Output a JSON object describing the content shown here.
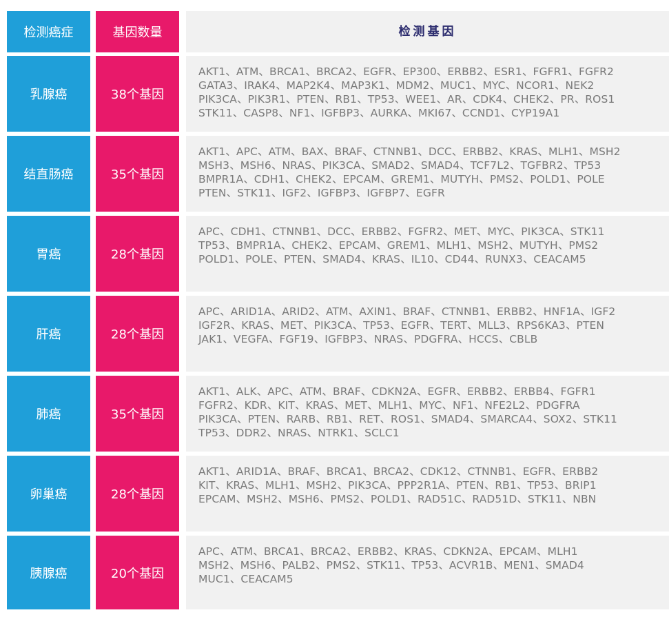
{
  "header": {
    "cancer_col": "检测癌症",
    "count_col": "基因数量",
    "genes_col": "检测基因"
  },
  "rows": [
    {
      "cancer": "乳腺癌",
      "count": "38个基因",
      "gene_lines": [
        "AKT1、ATM、BRCA1、BRCA2、EGFR、EP300、ERBB2、ESR1、FGFR1、FGFR2",
        "GATA3、IRAK4、MAP2K4、MAP3K1、MDM2、MUC1、MYC、NCOR1、NEK2",
        "PIK3CA、PIK3R1、PTEN、RB1、TP53、WEE1、AR、CDK4、CHEK2、PR、ROS1",
        "STK11、CASP8、NF1、IGFBP3、AURKA、MKI67、CCND1、CYP19A1"
      ]
    },
    {
      "cancer": "结直肠癌",
      "count": "35个基因",
      "gene_lines": [
        "AKT1、APC、ATM、BAX、BRAF、CTNNB1、DCC、ERBB2、KRAS、MLH1、MSH2",
        "MSH3、MSH6、NRAS、PIK3CA、SMAD2、SMAD4、TCF7L2、TGFBR2、TP53",
        "BMPR1A、CDH1、CHEK2、EPCAM、GREM1、MUTYH、PMS2、POLD1、POLE",
        "PTEN、STK11、IGF2、IGFBP3、IGFBP7、EGFR"
      ]
    },
    {
      "cancer": "胃癌",
      "count": "28个基因",
      "gene_lines": [
        "APC、CDH1、CTNNB1、DCC、ERBB2、FGFR2、MET、MYC、PIK3CA、STK11",
        "TP53、BMPR1A、CHEK2、EPCAM、GREM1、MLH1、MSH2、MUTYH、PMS2",
        "POLD1、POLE、PTEN、SMAD4、KRAS、IL10、CD44、RUNX3、CEACAM5"
      ]
    },
    {
      "cancer": "肝癌",
      "count": "28个基因",
      "gene_lines": [
        "APC、ARID1A、ARID2、ATM、AXIN1、BRAF、CTNNB1、ERBB2、HNF1A、IGF2",
        "IGF2R、KRAS、MET、PIK3CA、TP53、EGFR、TERT、MLL3、RPS6KA3、PTEN",
        "JAK1、VEGFA、FGF19、IGFBP3、NRAS、PDGFRA、HCCS、CBLB"
      ]
    },
    {
      "cancer": "肺癌",
      "count": "35个基因",
      "gene_lines": [
        "AKT1、ALK、APC、ATM、BRAF、CDKN2A、EGFR、ERBB2、ERBB4、FGFR1",
        "FGFR2、KDR、KIT、KRAS、MET、MLH1、MYC、NF1、NFE2L2、PDGFRA",
        "PIK3CA、PTEN、RARB、RB1、RET、ROS1、SMAD4、SMARCA4、SOX2、STK11",
        "TP53、DDR2、NRAS、NTRK1、SCLC1"
      ]
    },
    {
      "cancer": "卵巢癌",
      "count": "28个基因",
      "gene_lines": [
        "AKT1、ARID1A、BRAF、BRCA1、BRCA2、CDK12、CTNNB1、EGFR、ERBB2",
        "KIT、KRAS、MLH1、MSH2、PIK3CA、PPP2R1A、PTEN、RB1、TP53、BRIP1",
        "EPCAM、MSH2、MSH6、PMS2、POLD1、RAD51C、RAD51D、STK11、NBN"
      ]
    },
    {
      "cancer": "胰腺癌",
      "count": "20个基因",
      "gene_lines": [
        "APC、ATM、BRCA1、BRCA2、ERBB2、KRAS、CDKN2A、EPCAM、MLH1",
        "MSH2、MSH6、PALB2、PMS2、STK11、TP53、ACVR1B、MEN1、SMAD4",
        "MUC1、CEACAM5"
      ]
    }
  ]
}
